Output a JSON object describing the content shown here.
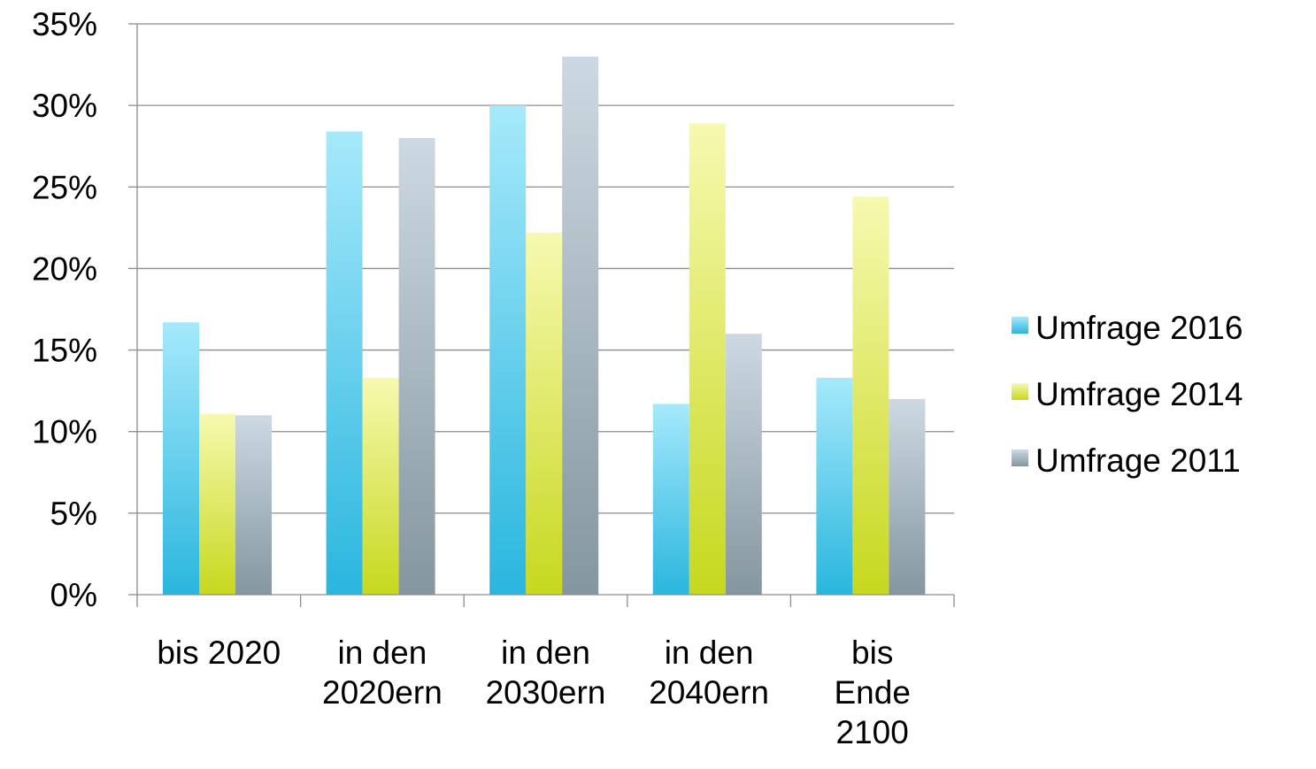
{
  "chart_data": {
    "type": "bar",
    "title": "",
    "xlabel": "",
    "ylabel": "",
    "categories": [
      [
        "bis 2020"
      ],
      [
        "in den",
        "2020ern"
      ],
      [
        "in den",
        "2030ern"
      ],
      [
        "in den",
        "2040ern"
      ],
      [
        "bis",
        "Ende",
        "2100"
      ]
    ],
    "series": [
      {
        "name": "Umfrage 2016",
        "values": [
          16.7,
          28.4,
          30.0,
          11.7,
          13.3
        ],
        "color_top": "#a6e9fb",
        "color_bottom": "#2ab6de"
      },
      {
        "name": "Umfrage 2014",
        "values": [
          11.1,
          13.3,
          22.2,
          28.9,
          24.4
        ],
        "color_top": "#f7f9b0",
        "color_bottom": "#c7d81e"
      },
      {
        "name": "Umfrage 2011",
        "values": [
          11.0,
          28.0,
          33.0,
          16.0,
          12.0
        ],
        "color_top": "#cdd9e2",
        "color_bottom": "#84969f"
      }
    ],
    "ylim": [
      0,
      35
    ],
    "yticks": [
      0,
      5,
      10,
      15,
      20,
      25,
      30,
      35
    ],
    "ytick_labels": [
      "0%",
      "5%",
      "10%",
      "15%",
      "20%",
      "25%",
      "30%",
      "35%"
    ],
    "grid": true,
    "legend_position": "right"
  }
}
